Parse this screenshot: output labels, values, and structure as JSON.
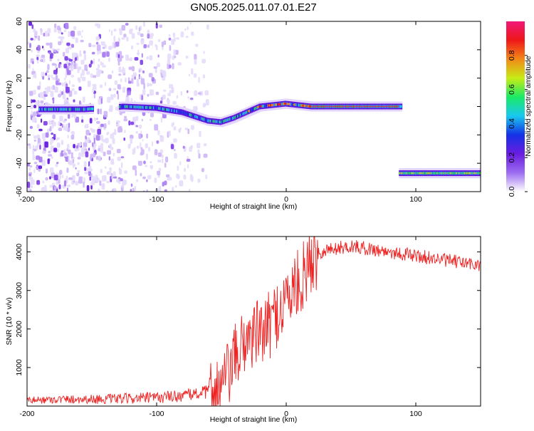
{
  "title": "GN05.2025.011.07.01.E27",
  "chart_data": [
    {
      "type": "heatmap",
      "xlabel": "Height of straight line (km)",
      "ylabel": "Frequency (Hz)",
      "xlim": [
        -200,
        150
      ],
      "ylim": [
        -60,
        60
      ],
      "xticks": [
        -200,
        -100,
        0,
        100
      ],
      "yticks": [
        -60,
        -40,
        -20,
        0,
        20,
        40,
        60
      ],
      "grid": false,
      "colorbar": {
        "label": "Normalized spectral amplitude",
        "range": [
          0,
          1
        ],
        "ticks": [
          "0.0",
          "0.2",
          "0.4",
          "0.6",
          "0.8"
        ],
        "colors": [
          "#ffffff",
          "#9b6cf0",
          "#6a1ce0",
          "#1432e6",
          "#1ac8f0",
          "#1aea66",
          "#c8ec16",
          "#f28a18",
          "#ee1818",
          "#f01878"
        ]
      },
      "tracks": [
        {
          "x": [
            -190,
            -155,
            -125,
            -100,
            -80,
            -60,
            -50,
            -40,
            -30,
            -20,
            -10,
            0,
            10,
            20,
            40,
            60,
            88
          ],
          "y": [
            -2,
            -2,
            0,
            -1,
            -4,
            -10,
            -11,
            -8,
            -4,
            0,
            1,
            2,
            1,
            0,
            0,
            0,
            0
          ]
        },
        {
          "x": [
            88,
            150
          ],
          "y": [
            -47,
            -47
          ]
        }
      ]
    },
    {
      "type": "line",
      "xlabel": "Height of straight line (km)",
      "ylabel": "SNR (10 * v/v)",
      "xlim": [
        -200,
        150
      ],
      "ylim": [
        0,
        4400
      ],
      "xticks": [
        -200,
        -100,
        0,
        100
      ],
      "yticks": [
        1000,
        2000,
        3000,
        4000
      ],
      "grid": false,
      "series": [
        {
          "color": "#ee2222",
          "x": [
            -200,
            -180,
            -160,
            -140,
            -120,
            -100,
            -80,
            -70,
            -60,
            -55,
            -50,
            -45,
            -40,
            -35,
            -30,
            -25,
            -20,
            -15,
            -10,
            -5,
            0,
            5,
            10,
            15,
            20,
            25,
            30,
            40,
            50,
            60,
            70,
            80,
            90,
            100,
            110,
            120,
            130,
            140,
            150
          ],
          "y": [
            150,
            170,
            180,
            180,
            200,
            220,
            270,
            320,
            370,
            420,
            500,
            800,
            1200,
            1500,
            1800,
            1850,
            1900,
            2000,
            2250,
            2500,
            2800,
            3000,
            3200,
            3500,
            3800,
            3950,
            4050,
            4100,
            4150,
            4100,
            4050,
            4000,
            3950,
            3900,
            3850,
            3800,
            3750,
            3700,
            3650
          ]
        }
      ]
    }
  ]
}
